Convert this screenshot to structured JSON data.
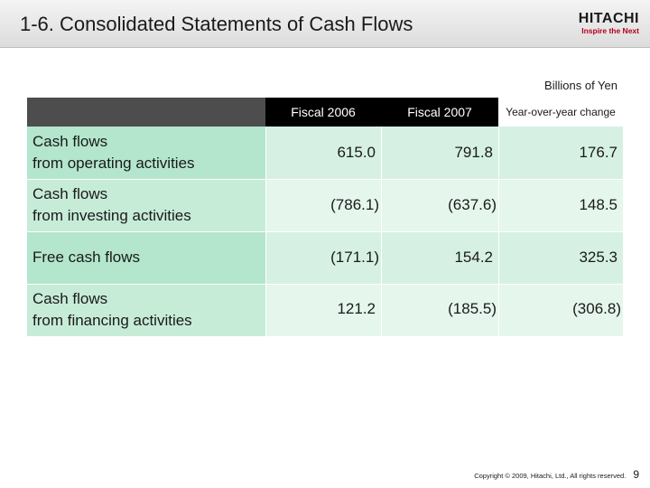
{
  "slide": {
    "title": "1-6. Consolidated Statements of Cash Flows",
    "unit": "Billions of Yen",
    "page_number": "9",
    "copyright": "Copyright © 2009, Hitachi, Ltd., All rights reserved."
  },
  "logo": {
    "wordmark": "HITACHI",
    "tagline": "Inspire the Next"
  },
  "table": {
    "columns": [
      "Fiscal 2006",
      "Fiscal 2007",
      "Year-over-year change"
    ],
    "rows": [
      {
        "label_1": "Cash flows",
        "label_2": "from operating activities",
        "values": [
          "615.0",
          "791.8",
          "176.7"
        ]
      },
      {
        "label_1": "Cash flows",
        "label_2": "from investing activities",
        "values": [
          "(786.1)",
          "(637.6)",
          "148.5"
        ]
      },
      {
        "label_1": "Free cash flows",
        "label_2": "",
        "values": [
          "(171.1)",
          "154.2",
          "325.3"
        ]
      },
      {
        "label_1": "Cash flows",
        "label_2": "from financing activities",
        "values": [
          "121.2",
          "(185.5)",
          "(306.8)"
        ]
      }
    ]
  },
  "colors": {
    "row_band_dark": "#b3e6cc",
    "row_band_light": "#d6f1e3",
    "header_bg": "#000000",
    "brand_red": "#b3001b"
  }
}
